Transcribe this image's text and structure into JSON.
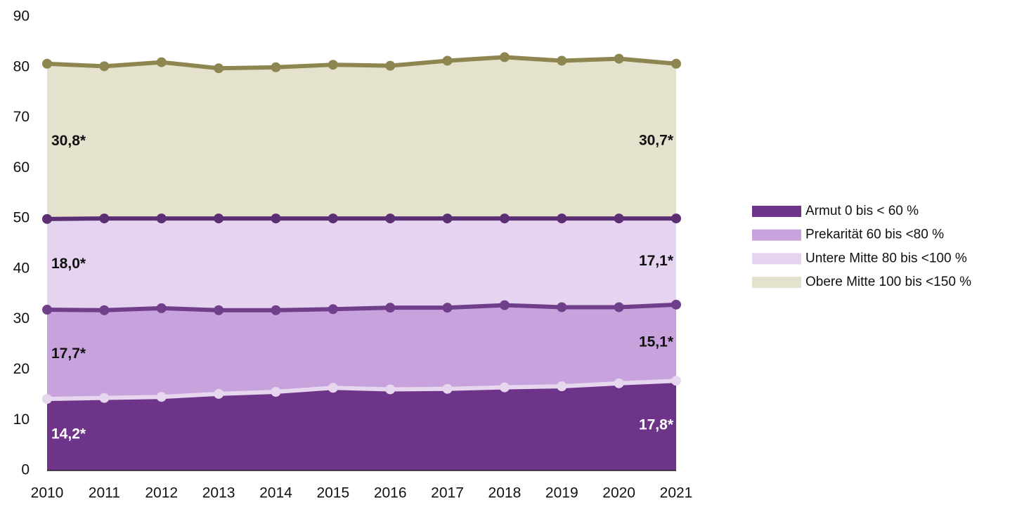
{
  "chart_data": {
    "type": "stacked_area",
    "categories": [
      "2010",
      "2011",
      "2012",
      "2013",
      "2014",
      "2015",
      "2016",
      "2017",
      "2018",
      "2019",
      "2020",
      "2021"
    ],
    "ylim": [
      0,
      90
    ],
    "yticks": [
      0,
      10,
      20,
      30,
      40,
      50,
      60,
      70,
      80,
      90
    ],
    "legend": "right",
    "series": [
      {
        "name": "Armut 0 bis < 60 %",
        "color": "#6e3489",
        "line_color": "#e6d6ee",
        "label_color": "#ffffff",
        "values": [
          14.2,
          14.4,
          14.6,
          15.2,
          15.6,
          16.4,
          16.1,
          16.2,
          16.5,
          16.7,
          17.3,
          17.8
        ],
        "value_labels": [
          "14,2*",
          null,
          null,
          null,
          null,
          null,
          null,
          null,
          null,
          null,
          null,
          "17,8*"
        ]
      },
      {
        "name": "Prekarität 60 bis <80 %",
        "color": "#c8a2dc",
        "line_color": "#6f3f8c",
        "label_color": "#111111",
        "values": [
          17.7,
          17.4,
          17.6,
          16.6,
          16.2,
          15.6,
          16.2,
          16.1,
          16.3,
          15.7,
          15.1,
          15.1
        ],
        "value_labels": [
          "17,7*",
          null,
          null,
          null,
          null,
          null,
          null,
          null,
          null,
          null,
          null,
          "15,1*"
        ]
      },
      {
        "name": "Untere Mitte 80 bis <100 %",
        "color": "#e5d3ef",
        "line_color": "#5c2f74",
        "label_color": "#111111",
        "values": [
          18.0,
          18.2,
          17.8,
          18.2,
          18.2,
          18.0,
          17.7,
          17.7,
          17.2,
          17.6,
          17.6,
          17.1
        ],
        "value_labels": [
          "18,0*",
          null,
          null,
          null,
          null,
          null,
          null,
          null,
          null,
          null,
          null,
          "17,1*"
        ]
      },
      {
        "name": "Obere Mitte 100 bis <150 %",
        "color": "#e4e1cd",
        "line_color": "#8e8650",
        "label_color": "#111111",
        "values": [
          30.8,
          30.2,
          31.0,
          29.8,
          30.0,
          30.5,
          30.3,
          31.3,
          32.0,
          31.3,
          31.7,
          30.7
        ],
        "value_labels": [
          "30,8*",
          null,
          null,
          null,
          null,
          null,
          null,
          null,
          null,
          null,
          null,
          "30,7*"
        ]
      }
    ]
  }
}
